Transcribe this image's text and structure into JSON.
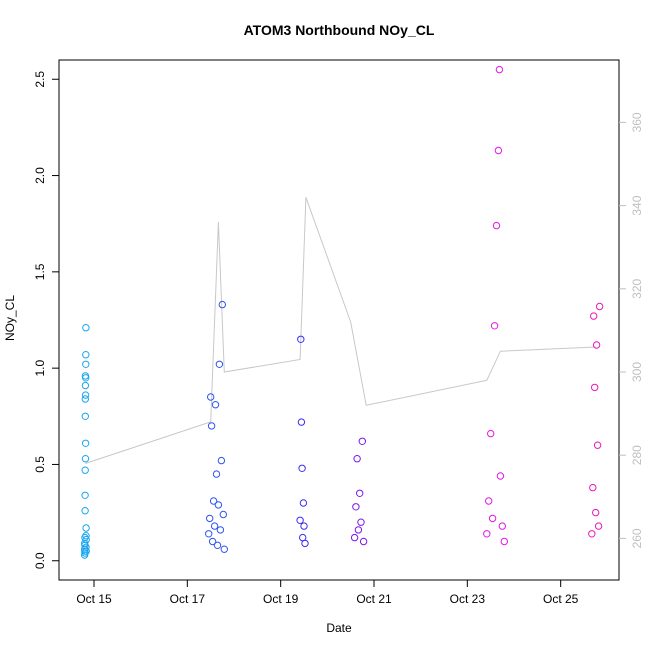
{
  "chart_data": {
    "type": "scatter",
    "title": "ATOM3 Northbound NOy_CL",
    "xlabel": "Date",
    "ylabel": "NOy_CL",
    "xlim": [
      "2017-10-14T06:00",
      "2017-10-26T06:00"
    ],
    "ylim": [
      -0.1,
      2.6
    ],
    "x_ticks": [
      {
        "label": "Oct 15",
        "date": "2017-10-15"
      },
      {
        "label": "Oct 17",
        "date": "2017-10-17"
      },
      {
        "label": "Oct 19",
        "date": "2017-10-19"
      },
      {
        "label": "Oct 21",
        "date": "2017-10-21"
      },
      {
        "label": "Oct 23",
        "date": "2017-10-23"
      },
      {
        "label": "Oct 25",
        "date": "2017-10-25"
      }
    ],
    "y_ticks": [
      "0.0",
      "0.5",
      "1.0",
      "1.5",
      "2.0",
      "2.5"
    ],
    "y2_ticks": [
      "260",
      "280",
      "300",
      "320",
      "340",
      "360"
    ],
    "y2lim": [
      250,
      375
    ],
    "grid": false,
    "legend": "none",
    "point_color_gradient": [
      "#1ea5f0",
      "#3b3df2",
      "#8a1ef0",
      "#ff1ee8"
    ],
    "secondary_line_color": "#c8c8c8",
    "series": [
      {
        "flight_date": "2017-10-14",
        "hour_range": [
          19.2,
          20.0
        ],
        "color": "#1aa6ef",
        "points": [
          {
            "x": "2017-10-14T19:10",
            "y": 0.03
          },
          {
            "x": "2017-10-14T19:12",
            "y": 0.06
          },
          {
            "x": "2017-10-14T19:14",
            "y": 0.09
          },
          {
            "x": "2017-10-14T19:16",
            "y": 0.05
          },
          {
            "x": "2017-10-14T19:18",
            "y": 0.12
          },
          {
            "x": "2017-10-14T19:20",
            "y": 0.08
          },
          {
            "x": "2017-10-14T19:22",
            "y": 0.04
          },
          {
            "x": "2017-10-14T19:24",
            "y": 0.26
          },
          {
            "x": "2017-10-14T19:26",
            "y": 0.34
          },
          {
            "x": "2017-10-14T19:28",
            "y": 0.47
          },
          {
            "x": "2017-10-14T19:30",
            "y": 0.75
          },
          {
            "x": "2017-10-14T19:32",
            "y": 0.84
          },
          {
            "x": "2017-10-14T19:34",
            "y": 0.96
          },
          {
            "x": "2017-10-14T19:36",
            "y": 0.91
          },
          {
            "x": "2017-10-14T19:38",
            "y": 0.53
          },
          {
            "x": "2017-10-14T19:40",
            "y": 0.61
          },
          {
            "x": "2017-10-14T19:42",
            "y": 0.86
          },
          {
            "x": "2017-10-14T19:44",
            "y": 0.95
          },
          {
            "x": "2017-10-14T19:46",
            "y": 1.02
          },
          {
            "x": "2017-10-14T19:48",
            "y": 1.07
          },
          {
            "x": "2017-10-14T19:50",
            "y": 1.21
          },
          {
            "x": "2017-10-14T19:52",
            "y": 0.13
          },
          {
            "x": "2017-10-14T19:54",
            "y": 0.07
          },
          {
            "x": "2017-10-14T19:56",
            "y": 0.17
          },
          {
            "x": "2017-10-14T19:58",
            "y": 0.11
          },
          {
            "x": "2017-10-14T20:00",
            "y": 0.05
          }
        ]
      },
      {
        "flight_date": "2017-10-17",
        "hour_range": [
          11.0,
          19.0
        ],
        "color": "#2f55f0",
        "points": [
          {
            "x": "2017-10-17T11:00",
            "y": 0.14
          },
          {
            "x": "2017-10-17T11:30",
            "y": 0.22
          },
          {
            "x": "2017-10-17T12:00",
            "y": 0.85
          },
          {
            "x": "2017-10-17T12:30",
            "y": 0.7
          },
          {
            "x": "2017-10-17T13:00",
            "y": 0.1
          },
          {
            "x": "2017-10-17T13:30",
            "y": 0.31
          },
          {
            "x": "2017-10-17T14:00",
            "y": 0.18
          },
          {
            "x": "2017-10-17T14:30",
            "y": 0.81
          },
          {
            "x": "2017-10-17T15:00",
            "y": 0.45
          },
          {
            "x": "2017-10-17T15:30",
            "y": 0.08
          },
          {
            "x": "2017-10-17T16:00",
            "y": 0.29
          },
          {
            "x": "2017-10-17T16:30",
            "y": 1.02
          },
          {
            "x": "2017-10-17T17:00",
            "y": 0.16
          },
          {
            "x": "2017-10-17T17:30",
            "y": 0.52
          },
          {
            "x": "2017-10-17T18:00",
            "y": 1.33
          },
          {
            "x": "2017-10-17T18:30",
            "y": 0.24
          },
          {
            "x": "2017-10-17T19:00",
            "y": 0.06
          }
        ]
      },
      {
        "flight_date": "2017-10-19",
        "hour_range": [
          10.0,
          12.5
        ],
        "color": "#3b2ef0",
        "points": [
          {
            "x": "2017-10-19T10:00",
            "y": 0.21
          },
          {
            "x": "2017-10-19T10:20",
            "y": 1.15
          },
          {
            "x": "2017-10-19T10:40",
            "y": 0.72
          },
          {
            "x": "2017-10-19T11:00",
            "y": 0.48
          },
          {
            "x": "2017-10-19T11:20",
            "y": 0.12
          },
          {
            "x": "2017-10-19T11:40",
            "y": 0.3
          },
          {
            "x": "2017-10-19T12:00",
            "y": 0.18
          },
          {
            "x": "2017-10-19T12:30",
            "y": 0.09
          }
        ]
      },
      {
        "flight_date": "2017-10-20",
        "hour_range": [
          14.0,
          19.0
        ],
        "color": "#7a18ee",
        "points": [
          {
            "x": "2017-10-20T14:00",
            "y": 0.12
          },
          {
            "x": "2017-10-20T14:40",
            "y": 0.28
          },
          {
            "x": "2017-10-20T15:20",
            "y": 0.53
          },
          {
            "x": "2017-10-20T16:00",
            "y": 0.16
          },
          {
            "x": "2017-10-20T16:40",
            "y": 0.35
          },
          {
            "x": "2017-10-20T17:20",
            "y": 0.2
          },
          {
            "x": "2017-10-20T18:00",
            "y": 0.62
          },
          {
            "x": "2017-10-20T18:40",
            "y": 0.1
          }
        ]
      },
      {
        "flight_date": "2017-10-23",
        "hour_range": [
          10.0,
          19.0
        ],
        "color": "#e21ae6",
        "points": [
          {
            "x": "2017-10-23T10:00",
            "y": 0.14
          },
          {
            "x": "2017-10-23T11:00",
            "y": 0.31
          },
          {
            "x": "2017-10-23T12:00",
            "y": 0.66
          },
          {
            "x": "2017-10-23T13:00",
            "y": 0.22
          },
          {
            "x": "2017-10-23T14:00",
            "y": 1.22
          },
          {
            "x": "2017-10-23T15:00",
            "y": 1.74
          },
          {
            "x": "2017-10-23T16:00",
            "y": 2.13
          },
          {
            "x": "2017-10-23T16:30",
            "y": 2.55
          },
          {
            "x": "2017-10-23T17:00",
            "y": 0.44
          },
          {
            "x": "2017-10-23T18:00",
            "y": 0.18
          },
          {
            "x": "2017-10-23T19:00",
            "y": 0.1
          }
        ]
      },
      {
        "flight_date": "2017-10-25",
        "hour_range": [
          16.0,
          20.0
        ],
        "color": "#e81ab8",
        "points": [
          {
            "x": "2017-10-25T16:00",
            "y": 0.14
          },
          {
            "x": "2017-10-25T16:30",
            "y": 0.38
          },
          {
            "x": "2017-10-25T17:00",
            "y": 1.27
          },
          {
            "x": "2017-10-25T17:30",
            "y": 0.9
          },
          {
            "x": "2017-10-25T18:00",
            "y": 0.25
          },
          {
            "x": "2017-10-25T18:30",
            "y": 1.12
          },
          {
            "x": "2017-10-25T19:00",
            "y": 0.6
          },
          {
            "x": "2017-10-25T19:30",
            "y": 0.18
          },
          {
            "x": "2017-10-25T20:00",
            "y": 1.32
          }
        ]
      }
    ],
    "secondary_series": {
      "axis": "right",
      "x": [
        "2017-10-14T19:30",
        "2017-10-17T12:00",
        "2017-10-17T16:00",
        "2017-10-17T19:00",
        "2017-10-19T10:00",
        "2017-10-19T13:00",
        "2017-10-20T12:00",
        "2017-10-20T20:00",
        "2017-10-23T10:00",
        "2017-10-23T17:00",
        "2017-10-25T18:00"
      ],
      "y": [
        278,
        288,
        336,
        300,
        303,
        342,
        312,
        292,
        298,
        305,
        306
      ]
    }
  }
}
